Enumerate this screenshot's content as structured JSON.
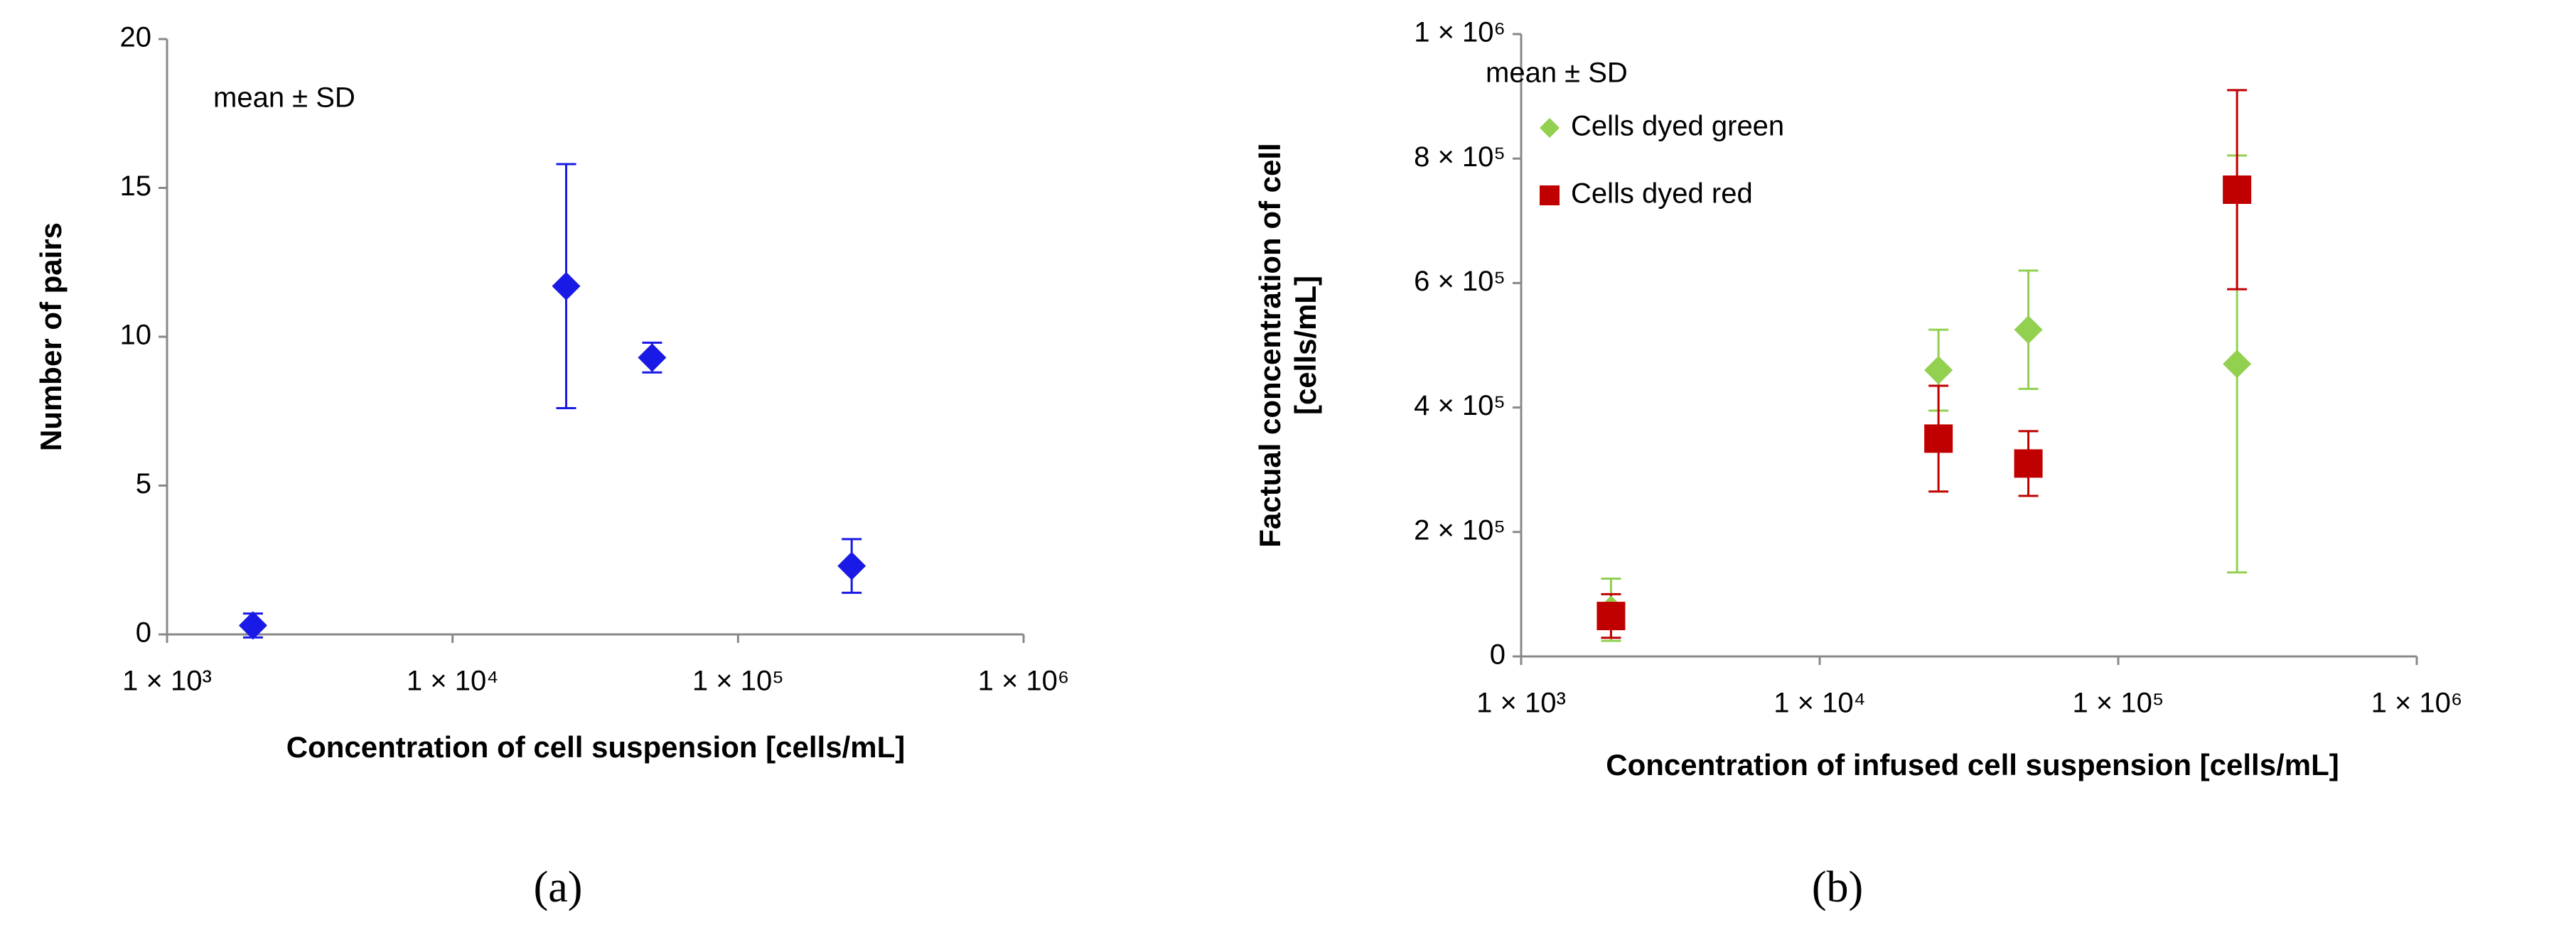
{
  "chart_data": [
    {
      "type": "scatter",
      "annotation": "mean ± SD",
      "panel_label": "(a)",
      "xlabel": "Concentration of cell suspension [cells/mL]",
      "ylabel": "Number of pairs",
      "x": [
        2000,
        25000,
        50000,
        250000
      ],
      "xscale": "log",
      "xlim": [
        1000,
        1000000
      ],
      "xticks": [
        {
          "value": 1000,
          "label": "1 × 10³"
        },
        {
          "value": 10000,
          "label": "1 × 10⁴"
        },
        {
          "value": 100000,
          "label": "1 × 10⁵"
        },
        {
          "value": 1000000,
          "label": "1 × 10⁶"
        }
      ],
      "ylim": [
        0,
        20
      ],
      "yticks": [
        0,
        5,
        10,
        15,
        20
      ],
      "series": [
        {
          "color": "#1a1ae6",
          "marker": "diamond",
          "values": [
            0.3,
            11.7,
            9.3,
            2.3
          ],
          "errors": [
            0.4,
            4.1,
            0.5,
            0.9
          ]
        }
      ]
    },
    {
      "type": "scatter",
      "annotation": "mean ± SD",
      "panel_label": "(b)",
      "xlabel": "Concentration of  infused cell suspension [cells/mL]",
      "ylabel": [
        "Factual concentration of cell",
        "[cells/mL]"
      ],
      "x": [
        2000,
        25000,
        50000,
        250000
      ],
      "xscale": "log",
      "xlim": [
        1000,
        1000000
      ],
      "xticks": [
        {
          "value": 1000,
          "label": "1 × 10³"
        },
        {
          "value": 10000,
          "label": "1 × 10⁴"
        },
        {
          "value": 100000,
          "label": "1 × 10⁵"
        },
        {
          "value": 1000000,
          "label": "1 × 10⁶"
        }
      ],
      "ylim": [
        0,
        1000000
      ],
      "yticks": [
        0,
        {
          "value": 200000,
          "label": "2 × 10⁵"
        },
        {
          "value": 400000,
          "label": "4 × 10⁵"
        },
        {
          "value": 600000,
          "label": "6 × 10⁵"
        },
        {
          "value": 800000,
          "label": "8 × 10⁵"
        },
        {
          "value": 1000000,
          "label": "1 × 10⁶"
        }
      ],
      "series": [
        {
          "name": "Cells dyed green",
          "color": "#92d050",
          "marker": "diamond",
          "values": [
            75000,
            460000,
            525000,
            470000
          ],
          "errors": [
            50000,
            65000,
            95000,
            335000
          ]
        },
        {
          "name": "Cells dyed red",
          "color": "#c00000",
          "marker": "square",
          "values": [
            65000,
            350000,
            310000,
            750000
          ],
          "errors": [
            35000,
            85000,
            52000,
            160000
          ]
        }
      ]
    }
  ]
}
